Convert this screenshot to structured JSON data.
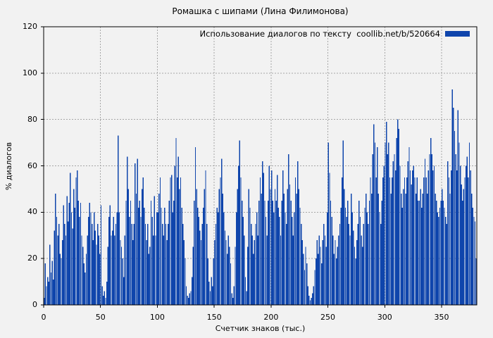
{
  "title": "Ромашка с шипами (Лина Филимонова)",
  "chart_data": {
    "type": "bar",
    "title": "Ромашка с шипами (Лина Филимонова)",
    "xlabel": "Счетчик знаков (тыс.)",
    "ylabel": "% диалогов",
    "legend": {
      "label": "Использование диалогов по тексту  coollib.net/b/520664",
      "position": "top-right"
    },
    "xlim": [
      0,
      381
    ],
    "ylim": [
      0,
      120
    ],
    "x_ticks": [
      0,
      50,
      100,
      150,
      200,
      250,
      300,
      350
    ],
    "y_ticks": [
      0,
      20,
      40,
      60,
      80,
      100,
      120
    ],
    "grid": "dashed",
    "colors": {
      "bar": "#0f45ac",
      "background": "#f2f2f2",
      "grid": "#a6a6a6",
      "frame": "#000000"
    },
    "x_start": 0,
    "x_step": 1,
    "values": [
      3,
      18,
      8,
      12,
      10,
      26,
      14,
      19,
      11,
      32,
      48,
      38,
      30,
      35,
      22,
      20,
      28,
      43,
      35,
      30,
      47,
      36,
      44,
      57,
      40,
      33,
      50,
      42,
      55,
      58,
      45,
      38,
      44,
      30,
      25,
      18,
      14,
      22,
      30,
      38,
      44,
      40,
      35,
      28,
      40,
      32,
      26,
      35,
      30,
      22,
      43,
      8,
      4,
      6,
      3,
      10,
      25,
      38,
      43,
      30,
      32,
      38,
      30,
      35,
      40,
      73,
      40,
      28,
      25,
      20,
      12,
      30,
      45,
      64,
      50,
      38,
      45,
      35,
      28,
      35,
      61,
      48,
      63,
      42,
      45,
      38,
      50,
      55,
      42,
      35,
      28,
      35,
      22,
      25,
      45,
      38,
      30,
      47,
      30,
      40,
      40,
      48,
      55,
      42,
      35,
      30,
      42,
      35,
      28,
      35,
      45,
      55,
      56,
      40,
      45,
      60,
      72,
      55,
      64,
      50,
      55,
      42,
      35,
      28,
      20,
      8,
      4,
      3,
      5,
      6,
      12,
      25,
      45,
      68,
      50,
      42,
      38,
      32,
      28,
      35,
      42,
      50,
      58,
      35,
      20,
      10,
      6,
      12,
      8,
      20,
      28,
      35,
      42,
      40,
      50,
      55,
      63,
      48,
      40,
      32,
      28,
      22,
      30,
      25,
      18,
      5,
      3,
      8,
      25,
      40,
      50,
      60,
      71,
      55,
      45,
      38,
      30,
      12,
      6,
      25,
      50,
      42,
      35,
      30,
      22,
      28,
      35,
      40,
      30,
      45,
      55,
      48,
      62,
      57,
      45,
      38,
      30,
      45,
      60,
      50,
      58,
      45,
      40,
      50,
      45,
      56,
      42,
      38,
      30,
      45,
      58,
      48,
      40,
      35,
      50,
      65,
      52,
      45,
      38,
      30,
      40,
      55,
      48,
      62,
      50,
      42,
      35,
      28,
      22,
      15,
      25,
      18,
      8,
      4,
      2,
      3,
      5,
      8,
      15,
      20,
      28,
      22,
      30,
      25,
      18,
      28,
      35,
      30,
      25,
      40,
      70,
      57,
      45,
      38,
      30,
      22,
      28,
      20,
      25,
      30,
      35,
      42,
      55,
      71,
      50,
      42,
      38,
      45,
      35,
      30,
      48,
      40,
      32,
      25,
      20,
      28,
      35,
      45,
      38,
      30,
      25,
      35,
      42,
      48,
      40,
      35,
      45,
      55,
      48,
      65,
      78,
      70,
      55,
      68,
      48,
      40,
      35,
      45,
      55,
      60,
      70,
      79,
      65,
      70,
      55,
      48,
      55,
      62,
      65,
      58,
      72,
      80,
      76,
      60,
      48,
      42,
      50,
      55,
      48,
      55,
      62,
      68,
      58,
      52,
      58,
      60,
      55,
      48,
      55,
      45,
      45,
      50,
      42,
      48,
      55,
      63,
      55,
      48,
      58,
      65,
      72,
      65,
      58,
      60,
      48,
      45,
      40,
      38,
      42,
      45,
      50,
      45,
      42,
      38,
      35,
      62,
      55,
      48,
      58,
      93,
      85,
      75,
      65,
      58,
      84,
      70,
      60,
      52,
      45,
      50,
      55,
      60,
      64,
      55,
      70,
      58,
      48,
      42,
      38,
      36,
      20
    ]
  }
}
